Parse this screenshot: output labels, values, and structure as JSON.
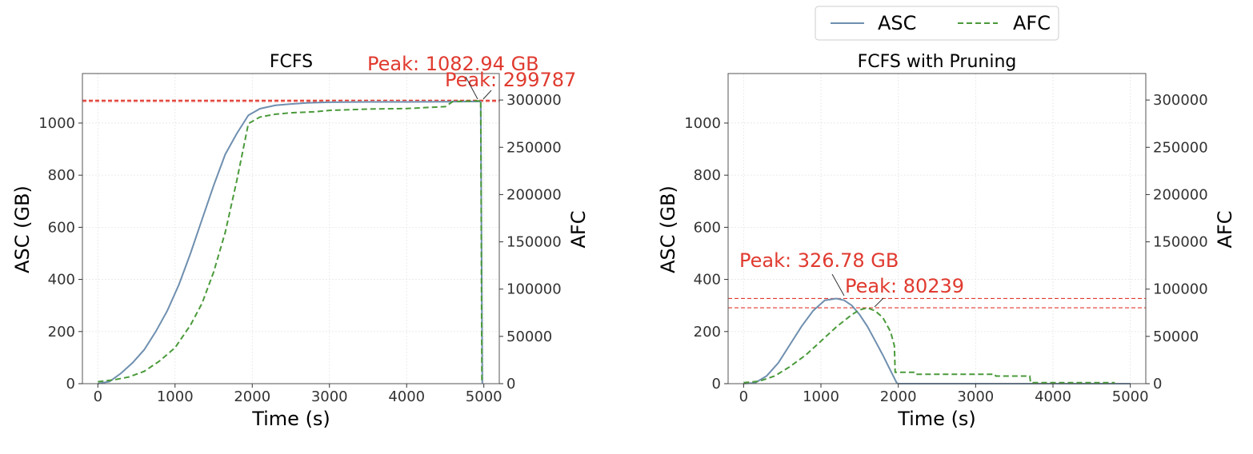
{
  "legend": {
    "items": [
      {
        "label": "ASC",
        "color": "#6f8faf",
        "dash": "solid"
      },
      {
        "label": "AFC",
        "color": "#4a9a3a",
        "dash": "dashed"
      }
    ],
    "placement": "top-right"
  },
  "chart_data": [
    {
      "type": "line",
      "title": "FCFS",
      "xlabel": "Time (s)",
      "ylabel": "ASC (GB)",
      "y2label": "AFC",
      "xlim": [
        -200,
        5200
      ],
      "ylim": [
        0,
        1190
      ],
      "y2lim": [
        0,
        328000
      ],
      "xticks": [
        0,
        1000,
        2000,
        3000,
        4000,
        5000
      ],
      "yticks": [
        0,
        200,
        400,
        600,
        800,
        1000
      ],
      "y2ticks": [
        0,
        50000,
        100000,
        150000,
        200000,
        250000,
        300000
      ],
      "grid": true,
      "peak_asc": {
        "label": "Peak: 1082.94 GB",
        "x": 4950,
        "y": 1082.94
      },
      "peak_afc": {
        "label": "Peak: 299787",
        "x": 4960,
        "y": 299787
      },
      "series": [
        {
          "name": "ASC",
          "axis": "left",
          "x": [
            0,
            150,
            300,
            450,
            600,
            750,
            900,
            1050,
            1200,
            1350,
            1500,
            1650,
            1800,
            1950,
            2100,
            2300,
            2500,
            2700,
            3000,
            3500,
            4000,
            4500,
            4950,
            4960,
            4980
          ],
          "y": [
            0,
            8,
            40,
            80,
            130,
            200,
            280,
            380,
            500,
            630,
            760,
            880,
            960,
            1030,
            1055,
            1068,
            1073,
            1077,
            1080,
            1081,
            1081,
            1082,
            1082.94,
            1082,
            0
          ]
        },
        {
          "name": "AFC",
          "axis": "right",
          "x": [
            0,
            200,
            400,
            600,
            800,
            1000,
            1200,
            1350,
            1500,
            1650,
            1800,
            1900,
            1950,
            2100,
            2300,
            2500,
            2800,
            3000,
            3500,
            4000,
            4500,
            4600,
            4950,
            4960,
            4975
          ],
          "y": [
            2000,
            4000,
            7000,
            13000,
            24000,
            38000,
            62000,
            85000,
            118000,
            160000,
            215000,
            255000,
            275000,
            282000,
            285000,
            286500,
            287500,
            289000,
            290500,
            291000,
            293000,
            298500,
            299000,
            299787,
            0
          ]
        }
      ]
    },
    {
      "type": "line",
      "title": "FCFS with Pruning",
      "xlabel": "Time (s)",
      "ylabel": "ASC (GB)",
      "y2label": "AFC",
      "xlim": [
        -200,
        5200
      ],
      "ylim": [
        0,
        1190
      ],
      "y2lim": [
        0,
        328000
      ],
      "xticks": [
        0,
        1000,
        2000,
        3000,
        4000,
        5000
      ],
      "yticks": [
        0,
        200,
        400,
        600,
        800,
        1000
      ],
      "y2ticks": [
        0,
        50000,
        100000,
        150000,
        200000,
        250000,
        300000
      ],
      "grid": true,
      "peak_asc": {
        "label": "Peak: 326.78 GB",
        "x": 1220,
        "y": 326.78
      },
      "peak_afc": {
        "label": "Peak: 80239",
        "x": 1600,
        "y": 80239
      },
      "series": [
        {
          "name": "ASC",
          "axis": "left",
          "x": [
            0,
            150,
            300,
            450,
            600,
            750,
            900,
            1050,
            1200,
            1300,
            1400,
            1500,
            1600,
            1700,
            1800,
            1900,
            1980,
            2000
          ],
          "y": [
            0,
            3,
            30,
            80,
            150,
            220,
            280,
            320,
            326.78,
            320,
            300,
            265,
            220,
            165,
            110,
            50,
            3,
            0
          ],
          "flat_after": 5000
        },
        {
          "name": "AFC",
          "axis": "right",
          "x": [
            0,
            200,
            400,
            600,
            800,
            1000,
            1200,
            1400,
            1500,
            1600,
            1700,
            1800,
            1900,
            1950,
            1960,
            2200,
            2210,
            3250,
            3260,
            3700,
            3710,
            4800
          ],
          "y": [
            1000,
            2500,
            8000,
            18000,
            30000,
            45000,
            60000,
            73000,
            78000,
            80239,
            77000,
            70000,
            55000,
            40000,
            12000,
            12000,
            10000,
            10000,
            8000,
            8000,
            1000,
            1000
          ]
        }
      ]
    }
  ]
}
